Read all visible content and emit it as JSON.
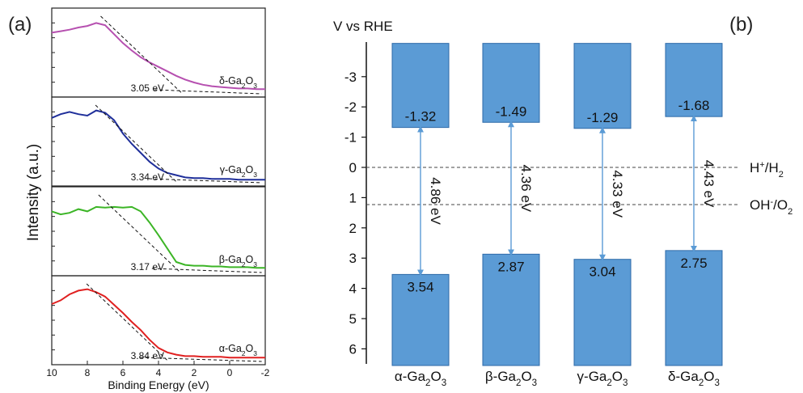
{
  "panel_a": {
    "label": "(a)",
    "ylabel": "Intensity (a.u.)",
    "xlabel": "Binding Energy (eV)",
    "x_ticks": [
      "10",
      "8",
      "6",
      "4",
      "2",
      "0",
      "-2"
    ]
  },
  "panel_b": {
    "label": "(b)",
    "axis_title": "V vs RHE",
    "y_ticks": [
      "-3",
      "-2",
      "-1",
      "0",
      "1",
      "2",
      "3",
      "4",
      "5",
      "6"
    ],
    "ref_levels": [
      {
        "value": 0,
        "sup_label": "H",
        "sup": "+",
        "mid": "/H",
        "sub": "2"
      },
      {
        "value": 1.23,
        "sup_label": "OH",
        "sup": "-",
        "mid": "/O",
        "sub": "2"
      }
    ]
  },
  "colors": {
    "alpha": "#e02020",
    "beta": "#3cb526",
    "gamma": "#1f2f9a",
    "delta": "#b650b0",
    "bar": "#5b9bd5",
    "bar_edge": "#2e6aa8",
    "arrow": "#5b9bd5"
  },
  "chart_data": [
    {
      "type": "line",
      "title": "",
      "xlabel": "Binding Energy (eV)",
      "ylabel": "Intensity (a.u.)",
      "xlim": [
        10,
        -2
      ],
      "series": [
        {
          "name": "δ-Ga2O3",
          "color_key": "delta",
          "band_gap_label": "3.05 eV",
          "x": [
            10,
            9.5,
            9,
            8.5,
            8,
            7.5,
            7,
            6.5,
            6,
            5.5,
            5,
            4.5,
            4,
            3.5,
            3,
            2.5,
            2,
            1.5,
            1,
            0.5,
            0,
            -0.5,
            -1,
            -1.5,
            -2
          ],
          "y": [
            0.8,
            0.82,
            0.84,
            0.87,
            0.89,
            0.93,
            0.9,
            0.78,
            0.66,
            0.56,
            0.47,
            0.4,
            0.34,
            0.28,
            0.22,
            0.17,
            0.13,
            0.1,
            0.08,
            0.07,
            0.06,
            0.05,
            0.05,
            0.04,
            0.04
          ]
        },
        {
          "name": "γ-Ga2O3",
          "color_key": "gamma",
          "band_gap_label": "3.34 eV",
          "x": [
            10,
            9.5,
            9,
            8.5,
            8,
            7.5,
            7,
            6.5,
            6,
            5.5,
            5,
            4.5,
            4,
            3.5,
            3,
            2.5,
            2,
            1.5,
            1,
            0.5,
            0,
            -0.5,
            -1,
            -1.5,
            -2
          ],
          "y": [
            0.85,
            0.9,
            0.93,
            0.9,
            0.88,
            0.95,
            0.92,
            0.82,
            0.64,
            0.5,
            0.38,
            0.26,
            0.17,
            0.11,
            0.08,
            0.05,
            0.04,
            0.04,
            0.03,
            0.03,
            0.03,
            0.02,
            0.02,
            0.02,
            0.02
          ]
        },
        {
          "name": "β-Ga2O3",
          "color_key": "beta",
          "band_gap_label": "3.17 eV",
          "x": [
            10,
            9.5,
            9,
            8.5,
            8,
            7.5,
            7,
            6.5,
            6,
            5.5,
            5,
            4.5,
            4,
            3.5,
            3,
            2.5,
            2,
            1.5,
            1,
            0.5,
            0,
            -0.5,
            -1,
            -1.5,
            -2
          ],
          "y": [
            0.8,
            0.76,
            0.78,
            0.83,
            0.8,
            0.86,
            0.85,
            0.86,
            0.85,
            0.86,
            0.8,
            0.65,
            0.48,
            0.3,
            0.12,
            0.08,
            0.07,
            0.07,
            0.06,
            0.06,
            0.05,
            0.05,
            0.05,
            0.04,
            0.04
          ]
        },
        {
          "name": "α-Ga2O3",
          "color_key": "alpha",
          "band_gap_label": "3.84 eV",
          "x": [
            10,
            9.5,
            9,
            8.5,
            8,
            7.5,
            7,
            6.5,
            6,
            5.5,
            5,
            4.5,
            4,
            3.5,
            3,
            2.5,
            2,
            1.5,
            1,
            0.5,
            0,
            -0.5,
            -1,
            -1.5,
            -2
          ],
          "y": [
            0.75,
            0.8,
            0.88,
            0.93,
            0.95,
            0.91,
            0.85,
            0.74,
            0.63,
            0.51,
            0.4,
            0.27,
            0.16,
            0.1,
            0.07,
            0.05,
            0.05,
            0.04,
            0.04,
            0.04,
            0.03,
            0.03,
            0.03,
            0.03,
            0.03
          ]
        }
      ]
    },
    {
      "type": "bar",
      "title": "",
      "ylabel": "V vs RHE",
      "ylim": [
        -4,
        6.6
      ],
      "y_inverted": true,
      "categories": [
        "α-Ga2O3",
        "β-Ga2O3",
        "γ-Ga2O3",
        "δ-Ga2O3"
      ],
      "conduction_band": [
        -1.32,
        -1.49,
        -1.29,
        -1.68
      ],
      "valence_band": [
        3.54,
        2.87,
        3.04,
        2.75
      ],
      "band_gap_labels": [
        "4.86 eV",
        "4.36 eV",
        "4.33 eV",
        "4.43 eV"
      ],
      "cb_labels": [
        "-1.32",
        "-1.49",
        "-1.29",
        "-1.68"
      ],
      "vb_labels": [
        "3.54",
        "2.87",
        "3.04",
        "2.75"
      ]
    }
  ]
}
